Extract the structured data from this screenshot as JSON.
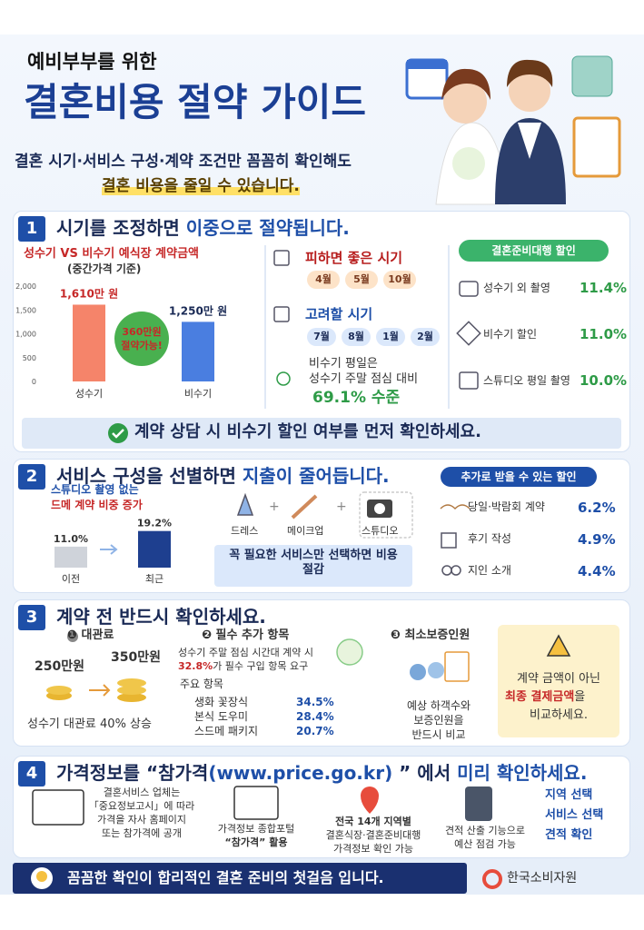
{
  "header": {
    "subtitle": "예비부부를 위한",
    "title": "결혼비용 절약 가이드",
    "desc1": "결혼 시기·서비스 구성·계약 조건만 꼼꼼히 확인해도",
    "desc2": "결혼 비용을 줄일 수 있습니다."
  },
  "section1": {
    "number": "1",
    "title_a": "시기를 조정하면 ",
    "title_b": "이중으로 절약됩니다.",
    "chart": {
      "type": "bar",
      "title": "성수기 VS 비수기 예식장 계약금액",
      "subtitle": "(중간가격 기준)",
      "categories": [
        "성수기",
        "비수기"
      ],
      "values": [
        1610,
        1250
      ],
      "value_labels": [
        "1,610만 원",
        "1,250만 원"
      ],
      "colors": [
        "#f5846a",
        "#4a7ee0"
      ],
      "ylim": [
        0,
        2000
      ],
      "yticks": [
        0,
        500,
        {
          "value": 1000,
          "label": "1,000"
        },
        {
          "value": 1500,
          "label": "1,500"
        },
        {
          "value": 2000,
          "label": "2,000"
        }
      ],
      "badge": [
        "360만원",
        "절약가능!"
      ]
    },
    "avoid": {
      "title": "피하면 좋은 시기",
      "months": [
        "4월",
        "5월",
        "10월"
      ]
    },
    "consider": {
      "title": "고려할 시기",
      "months": [
        "7월",
        "8월",
        "1월",
        "2월"
      ]
    },
    "note": {
      "line1": "비수기 평일은",
      "line2": "성수기 주말 점심 대비",
      "highlight": "69.1% 수준"
    },
    "discounts": {
      "title": "결혼준비대행 할인",
      "items": [
        {
          "label": "성수기 외 촬영",
          "value": "11.4%"
        },
        {
          "label": "비수기 할인",
          "value": "11.0%"
        },
        {
          "label": "스튜디오 평일 촬영",
          "value": "10.0%"
        }
      ]
    },
    "banner": "계약 상담 시 비수기 할인 여부를 먼저 확인하세요."
  },
  "section2": {
    "number": "2",
    "title_a": "서비스 구성을 선별하면 ",
    "title_b": "지출이 줄어듭니다.",
    "chart": {
      "type": "bar",
      "title": "스튜디오 촬영 없는",
      "subtitle": "드메 계약 비중 증가",
      "categories": [
        "이전",
        "최근"
      ],
      "values": [
        11.0,
        19.2
      ],
      "value_labels": [
        "11.0%",
        "19.2%"
      ],
      "colors": [
        "#cfd3da",
        "#1e3f8f"
      ]
    },
    "services": [
      "드레스",
      "메이크업",
      "스튜디오"
    ],
    "services_note": "꼭 필요한 서비스만 선택하면 비용 절감",
    "extra": {
      "title": "추가로 받을 수 있는 할인",
      "items": [
        {
          "label": "당일·박람회 계약",
          "value": "6.2%"
        },
        {
          "label": "후기 작성",
          "value": "4.9%"
        },
        {
          "label": "지인 소개",
          "value": "4.4%"
        }
      ]
    }
  },
  "section3": {
    "number": "3",
    "title": "계약 전 반드시 확인하세요.",
    "fee": {
      "title": "❶ 대관료",
      "before": "250만원",
      "after": "350만원",
      "note": "성수기 대관료 40% 상승"
    },
    "required": {
      "title": "❷ 필수 추가 항목",
      "desc": "성수기 주말 점심 시간대 계약 시",
      "highlight": "32.8%",
      "desc2": "가 필수 구입 항목 요구",
      "sub": "주요 항목",
      "items": [
        {
          "label": "생화 꽃장식",
          "value": "34.5%"
        },
        {
          "label": "본식 도우미",
          "value": "28.4%"
        },
        {
          "label": "스드메 패키지",
          "value": "20.7%"
        }
      ]
    },
    "guarantee": {
      "title": "❸ 최소보증인원",
      "lines": [
        "예상 하객수와",
        "보증인원을",
        "반드시 비교"
      ]
    },
    "warning": {
      "line1": "계약 금액이 아닌",
      "highlight": "최종 결제금액",
      "line2": "을",
      "line3": "비교하세요."
    }
  },
  "section4": {
    "number": "4",
    "title_a": "가격정보를 “참가격",
    "url": "(www.price.go.kr)",
    "title_b": " ” 에서 ",
    "title_c": "미리 확인하세요.",
    "items": [
      [
        "결혼서비스 업체는",
        "「중요정보고시」에 따라",
        "가격을 자사 홈페이지",
        "또는 참가격에 공개"
      ],
      [
        "가격정보 종합포털",
        "“참가격” 활용"
      ],
      [
        "전국 14개 지역별",
        "결혼식장·결혼준비대행",
        "가격정보 확인 가능"
      ],
      [
        "견적 산출 기능으로",
        "예산 점검 가능"
      ]
    ],
    "checks": [
      "지역 선택",
      "서비스 선택",
      "견적 확인"
    ]
  },
  "footer": {
    "message": "꼼꼼한 확인이 합리적인 결혼 준비의 첫걸음 입니다.",
    "org": "한국소비자원"
  }
}
